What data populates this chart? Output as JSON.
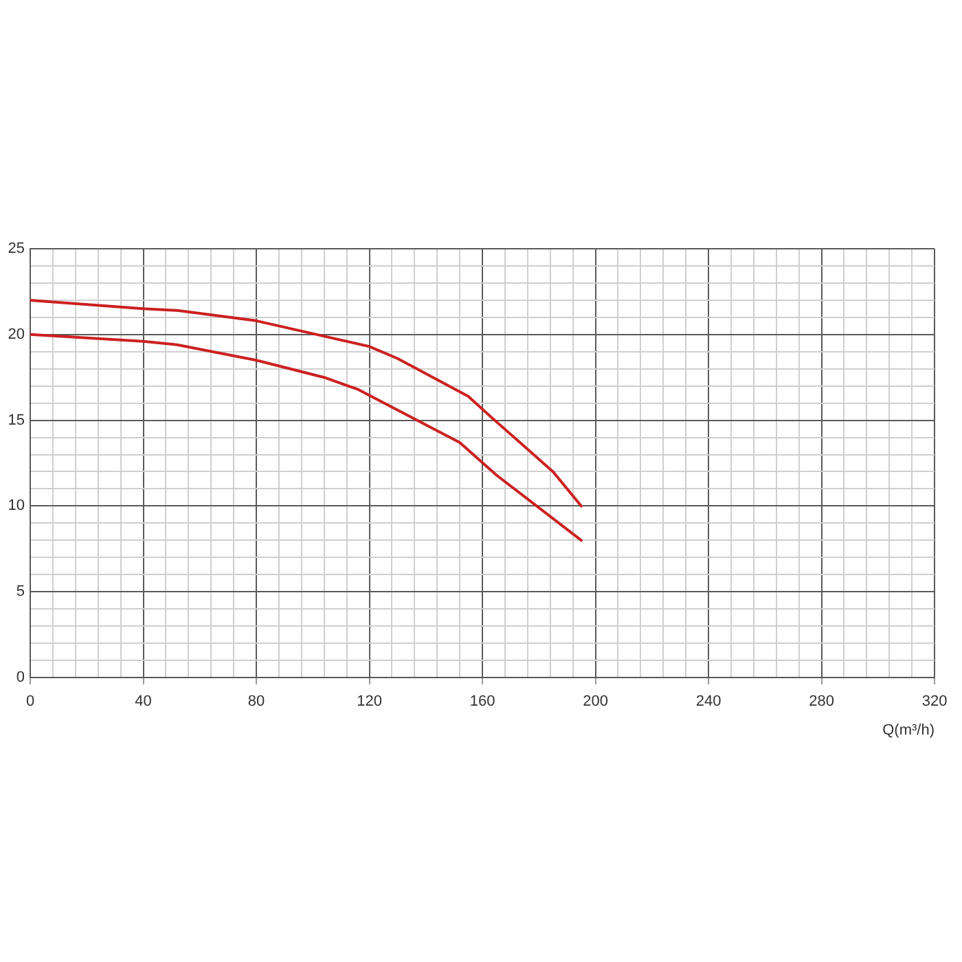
{
  "chart_data": {
    "type": "line",
    "xlabel": "Q(m³/h)",
    "xlim": [
      0,
      320
    ],
    "xticks": [
      0,
      {
        "value": 8,
        "label": null
      },
      {
        "value": 16,
        "label": null
      },
      {
        "value": 24,
        "label": null
      },
      {
        "value": 32,
        "label": null
      },
      40,
      {
        "value": 48,
        "label": null
      },
      {
        "value": 56,
        "label": null
      },
      {
        "value": 64,
        "label": null
      },
      {
        "value": 72,
        "label": null
      },
      80,
      {
        "value": 88,
        "label": null
      },
      {
        "value": 96,
        "label": null
      },
      {
        "value": 104,
        "label": null
      },
      {
        "value": 112,
        "label": null
      },
      120,
      {
        "value": 128,
        "label": null
      },
      {
        "value": 136,
        "label": null
      },
      {
        "value": 144,
        "label": null
      },
      {
        "value": 152,
        "label": null
      },
      160,
      {
        "value": 168,
        "label": null
      },
      {
        "value": 176,
        "label": null
      },
      {
        "value": 184,
        "label": null
      },
      {
        "value": 192,
        "label": null
      },
      200,
      {
        "value": 208,
        "label": null
      },
      {
        "value": 216,
        "label": null
      },
      {
        "value": 224,
        "label": null
      },
      {
        "value": 232,
        "label": null
      },
      240,
      {
        "value": 248,
        "label": null
      },
      {
        "value": 256,
        "label": null
      },
      {
        "value": 264,
        "label": null
      },
      {
        "value": 272,
        "label": null
      },
      280,
      {
        "value": 288,
        "label": null
      },
      {
        "value": 296,
        "label": null
      },
      {
        "value": 304,
        "label": null
      },
      {
        "value": 312,
        "label": null
      },
      320
    ],
    "ylim": [
      0,
      25
    ],
    "yticks": [
      0,
      {
        "value": 1,
        "label": null
      },
      {
        "value": 2,
        "label": null
      },
      {
        "value": 3,
        "label": null
      },
      {
        "value": 4,
        "label": null
      },
      5,
      {
        "value": 6,
        "label": null
      },
      {
        "value": 7,
        "label": null
      },
      {
        "value": 8,
        "label": null
      },
      {
        "value": 9,
        "label": null
      },
      10,
      {
        "value": 11,
        "label": null
      },
      {
        "value": 12,
        "label": null
      },
      {
        "value": 13,
        "label": null
      },
      {
        "value": 14,
        "label": null
      },
      15,
      {
        "value": 16,
        "label": null
      },
      {
        "value": 17,
        "label": null
      },
      {
        "value": 18,
        "label": null
      },
      {
        "value": 19,
        "label": null
      },
      20,
      {
        "value": 21,
        "label": null
      },
      {
        "value": 22,
        "label": null
      },
      {
        "value": 23,
        "label": null
      },
      {
        "value": 24,
        "label": null
      },
      25
    ],
    "grid": true,
    "marker": "none",
    "line_style": "solid",
    "series": [
      {
        "color": "#cc2020",
        "x": [
          0,
          40,
          52,
          80,
          120,
          130,
          155,
          163,
          185,
          195
        ],
        "values": [
          22,
          21.5,
          21.4,
          20.8,
          19.3,
          18.6,
          16.4,
          15.2,
          12,
          10
        ]
      },
      {
        "color": "#cc2020",
        "x": [
          0,
          40,
          52,
          80,
          104,
          116,
          152,
          165,
          195
        ],
        "values": [
          20,
          19.6,
          19.4,
          18.5,
          17.5,
          16.8,
          13.7,
          11.8,
          8
        ]
      }
    ]
  }
}
